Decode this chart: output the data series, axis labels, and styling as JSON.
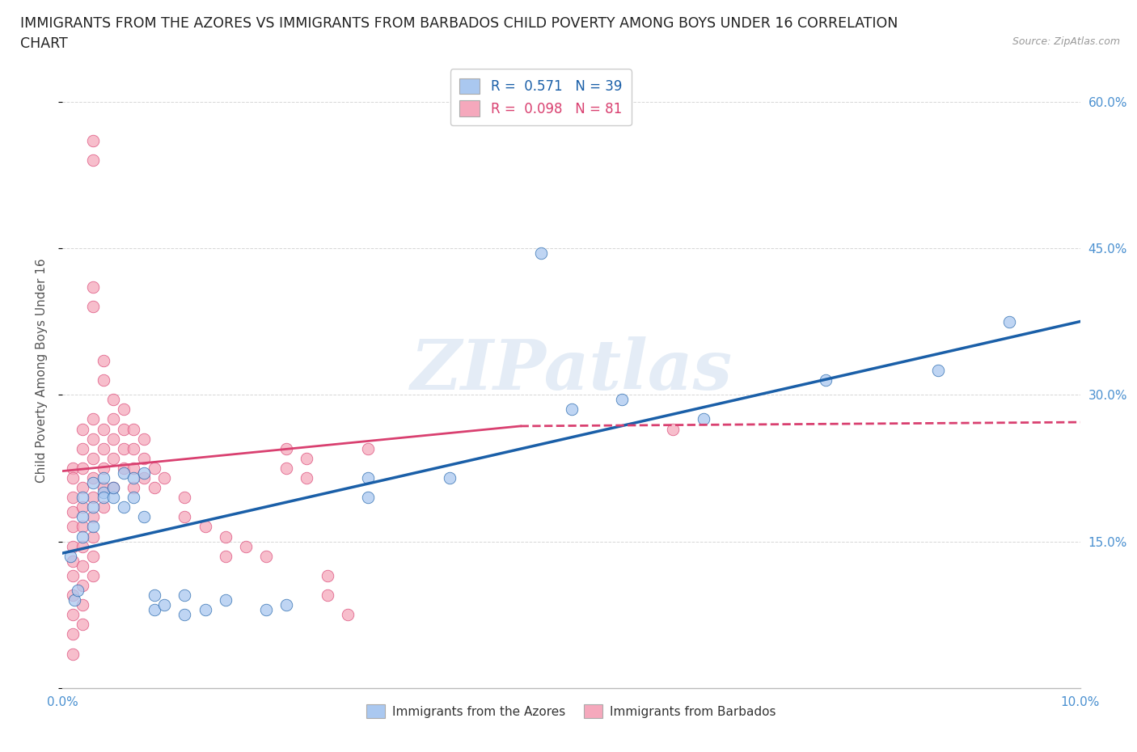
{
  "title_line1": "IMMIGRANTS FROM THE AZORES VS IMMIGRANTS FROM BARBADOS CHILD POVERTY AMONG BOYS UNDER 16 CORRELATION",
  "title_line2": "CHART",
  "source": "Source: ZipAtlas.com",
  "ylabel": "Child Poverty Among Boys Under 16",
  "color_azores": "#aac8f0",
  "color_barbados": "#f5a8bc",
  "line_color_azores": "#1a5fa8",
  "line_color_barbados": "#d94070",
  "watermark": "ZIPatlas",
  "azores_points": [
    [
      0.0008,
      0.135
    ],
    [
      0.0012,
      0.09
    ],
    [
      0.0015,
      0.1
    ],
    [
      0.002,
      0.175
    ],
    [
      0.002,
      0.195
    ],
    [
      0.002,
      0.155
    ],
    [
      0.003,
      0.185
    ],
    [
      0.003,
      0.21
    ],
    [
      0.003,
      0.165
    ],
    [
      0.004,
      0.2
    ],
    [
      0.004,
      0.215
    ],
    [
      0.004,
      0.195
    ],
    [
      0.005,
      0.195
    ],
    [
      0.005,
      0.205
    ],
    [
      0.006,
      0.185
    ],
    [
      0.006,
      0.22
    ],
    [
      0.007,
      0.215
    ],
    [
      0.007,
      0.195
    ],
    [
      0.008,
      0.175
    ],
    [
      0.008,
      0.22
    ],
    [
      0.009,
      0.08
    ],
    [
      0.009,
      0.095
    ],
    [
      0.01,
      0.085
    ],
    [
      0.012,
      0.095
    ],
    [
      0.012,
      0.075
    ],
    [
      0.014,
      0.08
    ],
    [
      0.016,
      0.09
    ],
    [
      0.02,
      0.08
    ],
    [
      0.022,
      0.085
    ],
    [
      0.03,
      0.215
    ],
    [
      0.03,
      0.195
    ],
    [
      0.038,
      0.215
    ],
    [
      0.047,
      0.445
    ],
    [
      0.05,
      0.285
    ],
    [
      0.055,
      0.295
    ],
    [
      0.063,
      0.275
    ],
    [
      0.075,
      0.315
    ],
    [
      0.086,
      0.325
    ],
    [
      0.093,
      0.375
    ]
  ],
  "barbados_points": [
    [
      0.001,
      0.225
    ],
    [
      0.001,
      0.215
    ],
    [
      0.001,
      0.195
    ],
    [
      0.001,
      0.18
    ],
    [
      0.001,
      0.165
    ],
    [
      0.001,
      0.145
    ],
    [
      0.001,
      0.13
    ],
    [
      0.001,
      0.115
    ],
    [
      0.001,
      0.095
    ],
    [
      0.001,
      0.075
    ],
    [
      0.001,
      0.055
    ],
    [
      0.001,
      0.035
    ],
    [
      0.002,
      0.265
    ],
    [
      0.002,
      0.245
    ],
    [
      0.002,
      0.225
    ],
    [
      0.002,
      0.205
    ],
    [
      0.002,
      0.185
    ],
    [
      0.002,
      0.165
    ],
    [
      0.002,
      0.145
    ],
    [
      0.002,
      0.125
    ],
    [
      0.002,
      0.105
    ],
    [
      0.002,
      0.085
    ],
    [
      0.002,
      0.065
    ],
    [
      0.003,
      0.54
    ],
    [
      0.003,
      0.56
    ],
    [
      0.003,
      0.39
    ],
    [
      0.003,
      0.41
    ],
    [
      0.003,
      0.275
    ],
    [
      0.003,
      0.255
    ],
    [
      0.003,
      0.235
    ],
    [
      0.003,
      0.215
    ],
    [
      0.003,
      0.195
    ],
    [
      0.003,
      0.175
    ],
    [
      0.003,
      0.155
    ],
    [
      0.003,
      0.135
    ],
    [
      0.003,
      0.115
    ],
    [
      0.004,
      0.335
    ],
    [
      0.004,
      0.315
    ],
    [
      0.004,
      0.265
    ],
    [
      0.004,
      0.245
    ],
    [
      0.004,
      0.225
    ],
    [
      0.004,
      0.205
    ],
    [
      0.004,
      0.185
    ],
    [
      0.005,
      0.295
    ],
    [
      0.005,
      0.275
    ],
    [
      0.005,
      0.255
    ],
    [
      0.005,
      0.235
    ],
    [
      0.005,
      0.205
    ],
    [
      0.006,
      0.285
    ],
    [
      0.006,
      0.265
    ],
    [
      0.006,
      0.245
    ],
    [
      0.006,
      0.225
    ],
    [
      0.007,
      0.265
    ],
    [
      0.007,
      0.245
    ],
    [
      0.007,
      0.225
    ],
    [
      0.007,
      0.205
    ],
    [
      0.008,
      0.255
    ],
    [
      0.008,
      0.235
    ],
    [
      0.008,
      0.215
    ],
    [
      0.009,
      0.225
    ],
    [
      0.009,
      0.205
    ],
    [
      0.01,
      0.215
    ],
    [
      0.012,
      0.195
    ],
    [
      0.012,
      0.175
    ],
    [
      0.014,
      0.165
    ],
    [
      0.016,
      0.155
    ],
    [
      0.016,
      0.135
    ],
    [
      0.018,
      0.145
    ],
    [
      0.02,
      0.135
    ],
    [
      0.022,
      0.245
    ],
    [
      0.022,
      0.225
    ],
    [
      0.024,
      0.235
    ],
    [
      0.024,
      0.215
    ],
    [
      0.026,
      0.115
    ],
    [
      0.026,
      0.095
    ],
    [
      0.028,
      0.075
    ],
    [
      0.03,
      0.245
    ],
    [
      0.06,
      0.265
    ]
  ],
  "azores_trendline": [
    [
      0.0,
      0.138
    ],
    [
      0.1,
      0.375
    ]
  ],
  "barbados_trendline_solid": [
    [
      0.0,
      0.222
    ],
    [
      0.045,
      0.268
    ]
  ],
  "barbados_trendline_dashed": [
    [
      0.045,
      0.268
    ],
    [
      0.1,
      0.272
    ]
  ],
  "xlim": [
    0.0,
    0.1
  ],
  "ylim": [
    0.0,
    0.65
  ],
  "x_tick_vals": [
    0.0,
    0.02,
    0.04,
    0.06,
    0.08,
    0.1
  ],
  "y_tick_vals": [
    0.0,
    0.15,
    0.3,
    0.45,
    0.6
  ],
  "y_tick_labels": [
    "",
    "15.0%",
    "30.0%",
    "45.0%",
    "60.0%"
  ],
  "x_tick_labels": [
    "0.0%",
    "",
    "",
    "",
    "",
    "10.0%"
  ],
  "background_color": "#ffffff",
  "grid_color": "#cccccc",
  "title_fontsize": 12.5,
  "axis_label_fontsize": 11,
  "tick_fontsize": 11,
  "tick_color": "#4a90d0"
}
